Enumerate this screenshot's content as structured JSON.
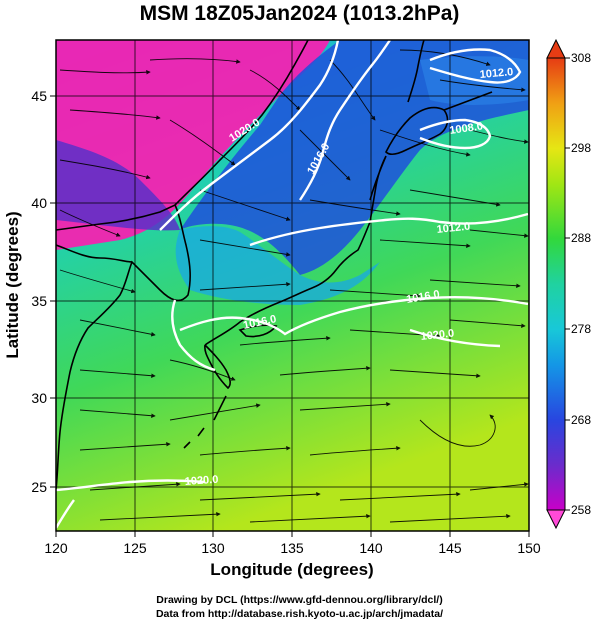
{
  "title": "MSM 18Z05Jan2024 (1013.2hPa)",
  "x_axis": {
    "label": "Longitude (degrees)",
    "range": [
      120,
      150
    ],
    "ticks": [
      120,
      125,
      130,
      135,
      140,
      145,
      150
    ]
  },
  "y_axis": {
    "label": "Latitude  (degrees)",
    "range": [
      22.5,
      47.5
    ],
    "ticks": [
      25,
      30,
      35,
      40,
      45
    ]
  },
  "colorbar": {
    "range": [
      258,
      308
    ],
    "ticks": [
      258,
      268,
      278,
      288,
      298,
      308
    ],
    "colors": [
      "#c000c0",
      "#5a3cc8",
      "#2850e0",
      "#18b4d8",
      "#20d2a8",
      "#3cd84c",
      "#a8e614",
      "#e6e614",
      "#f0a014",
      "#e63c14"
    ]
  },
  "isobars": [
    {
      "label": "1020.0"
    },
    {
      "label": "1016.0"
    },
    {
      "label": "1012.0"
    },
    {
      "label": "1008.0"
    },
    {
      "label": "1016.0"
    },
    {
      "label": "1020.0"
    },
    {
      "label": "1012.0"
    },
    {
      "label": "1016.0"
    },
    {
      "label": "1020.0"
    }
  ],
  "credits": {
    "line1": "Drawing by DCL (https://www.gfd-dennou.org/library/dcl/)",
    "line2": "Data from http://database.rish.kyoto-u.ac.jp/arch/jmadata/"
  }
}
